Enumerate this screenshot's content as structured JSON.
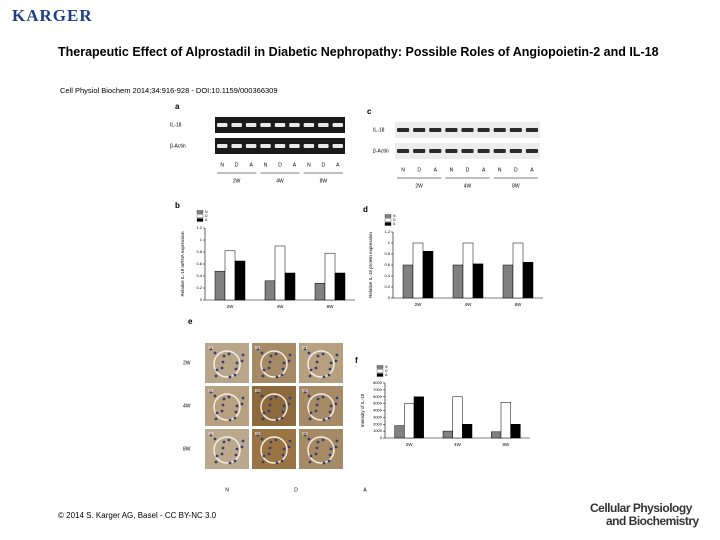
{
  "header": {
    "logo": "KARGER"
  },
  "title": "Therapeutic Effect of Alprostadil in Diabetic Nephropathy: Possible Roles of Angiopoietin-2 and IL-18",
  "citation": "Cell Physiol Biochem 2014;34:916-928 - DOI:10.1159/000366309",
  "figure": {
    "blots": [
      {
        "letter": "a",
        "rows": [
          "IL-18",
          "β-Actin"
        ],
        "lanes": [
          "N",
          "D",
          "A",
          "N",
          "D",
          "A",
          "N",
          "D",
          "A"
        ],
        "groups": [
          "2W",
          "4W",
          "8W"
        ]
      },
      {
        "letter": "c",
        "rows": [
          "IL-18",
          "β-Actin"
        ],
        "lanes": [
          "N",
          "D",
          "A",
          "N",
          "D",
          "A",
          "N",
          "D",
          "A"
        ],
        "groups": [
          "2W",
          "4W",
          "8W"
        ]
      }
    ],
    "charts": [
      {
        "type": "bar",
        "letter": "b",
        "ylabel": "Relative IL-18 mRNA expression",
        "categories": [
          "2W",
          "4W",
          "8W"
        ],
        "ylim": [
          0,
          1.2
        ],
        "yticks": [
          0,
          0.2,
          0.4,
          0.6,
          0.8,
          1,
          1.2
        ],
        "series": [
          {
            "name": "N",
            "color": "#808080",
            "values": [
              0.48,
              0.32,
              0.28
            ]
          },
          {
            "name": "D",
            "color": "#ffffff",
            "values": [
              0.82,
              0.9,
              0.78
            ]
          },
          {
            "name": "A",
            "color": "#000000",
            "values": [
              0.65,
              0.45,
              0.45
            ]
          }
        ]
      },
      {
        "type": "bar",
        "letter": "d",
        "ylabel": "Relative IL-18 protein expression",
        "categories": [
          "2W",
          "4W",
          "8W"
        ],
        "ylim": [
          0,
          1.2
        ],
        "yticks": [
          0,
          0.2,
          0.4,
          0.6,
          0.8,
          1,
          1.2
        ],
        "series": [
          {
            "name": "N",
            "color": "#808080",
            "values": [
              0.6,
              0.6,
              0.6
            ]
          },
          {
            "name": "D",
            "color": "#ffffff",
            "values": [
              1.0,
              1.0,
              1.0
            ]
          },
          {
            "name": "A",
            "color": "#000000",
            "values": [
              0.85,
              0.62,
              0.65
            ]
          }
        ]
      },
      {
        "type": "bar",
        "letter": "f",
        "ylabel": "Intensity of IL-18",
        "categories": [
          "2W",
          "4W",
          "8W"
        ],
        "ylim": [
          0,
          8000
        ],
        "yticks": [
          0,
          1000,
          2000,
          3000,
          4000,
          5000,
          6000,
          7000,
          8000
        ],
        "series": [
          {
            "name": "N",
            "color": "#808080",
            "values": [
              1800,
              1000,
              900
            ]
          },
          {
            "name": "D",
            "color": "#ffffff",
            "values": [
              5000,
              6000,
              5200
            ]
          },
          {
            "name": "A",
            "color": "#000000",
            "values": [
              6000,
              2000,
              2000
            ]
          }
        ]
      }
    ],
    "ihc": {
      "letter": "e",
      "rows": [
        "2W",
        "4W",
        "8W"
      ],
      "columns": [
        "N",
        "D",
        "A"
      ],
      "cells": [
        [
          "A1",
          "B1",
          "C1"
        ],
        [
          "A2",
          "B2",
          "C2"
        ],
        [
          "A3",
          "B3",
          "C3"
        ]
      ]
    }
  },
  "footer": {
    "copyright": "© 2014 S. Karger AG, Basel - CC BY-NC 3.0",
    "journal": [
      "Cellular Physiology",
      "and Biochemistry"
    ]
  }
}
